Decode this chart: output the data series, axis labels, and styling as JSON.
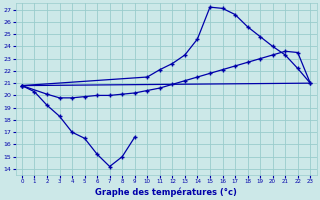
{
  "xlabel": "Graphe des températures (°c)",
  "bg_color": "#cce8e8",
  "grid_color": "#99cccc",
  "line_color": "#0000aa",
  "xlim": [
    -0.5,
    23.5
  ],
  "ylim": [
    13.5,
    27.5
  ],
  "xticks": [
    0,
    1,
    2,
    3,
    4,
    5,
    6,
    7,
    8,
    9,
    10,
    11,
    12,
    13,
    14,
    15,
    16,
    17,
    18,
    19,
    20,
    21,
    22,
    23
  ],
  "yticks": [
    14,
    15,
    16,
    17,
    18,
    19,
    20,
    21,
    22,
    23,
    24,
    25,
    26,
    27
  ],
  "line1_x": [
    0,
    1,
    2,
    3,
    4,
    5,
    6,
    7,
    8,
    9
  ],
  "line1_y": [
    20.8,
    20.3,
    19.2,
    18.3,
    17.0,
    16.5,
    15.2,
    14.2,
    15.0,
    16.6
  ],
  "line2_x": [
    0,
    2,
    3,
    4,
    5,
    6,
    7,
    8,
    9,
    10,
    11,
    12,
    13,
    14,
    15,
    16,
    17,
    18,
    19,
    20,
    21,
    22,
    23
  ],
  "line2_y": [
    20.8,
    20.1,
    19.8,
    19.8,
    19.9,
    20.0,
    20.0,
    20.1,
    20.2,
    20.4,
    20.6,
    20.9,
    21.2,
    21.5,
    21.8,
    22.1,
    22.4,
    22.7,
    23.0,
    23.3,
    23.6,
    23.5,
    21.0
  ],
  "line3_x": [
    0,
    10,
    11,
    12,
    13,
    14,
    15,
    16,
    17,
    18,
    19,
    20,
    21,
    22,
    23
  ],
  "line3_y": [
    20.8,
    21.5,
    22.1,
    22.6,
    23.3,
    24.6,
    27.2,
    27.1,
    26.6,
    25.6,
    24.8,
    24.0,
    23.3,
    22.2,
    21.0
  ],
  "line4_x": [
    0,
    23
  ],
  "line4_y": [
    20.8,
    21.0
  ]
}
